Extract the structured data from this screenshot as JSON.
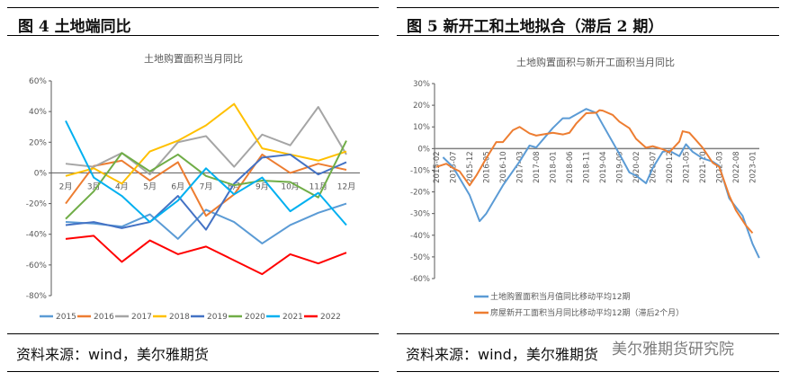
{
  "left_panel": {
    "header": "图 4  土地端同比",
    "source": "资料来源：wind，美尔雅期货"
  },
  "right_panel": {
    "header": "图 5  新开工和土地拟合（滞后 2 期）",
    "source": "资料来源：wind，美尔雅期货",
    "watermark": "美尔雅期货研究院"
  },
  "chart_data": [
    {
      "type": "line",
      "title": "土地购置面积当月同比",
      "categories": [
        "2月",
        "3月",
        "4月",
        "5月",
        "6月",
        "7月",
        "8月",
        "9月",
        "10月",
        "11月",
        "12月"
      ],
      "ylim": [
        -80,
        60
      ],
      "yticks": [
        "60%",
        "40%",
        "20%",
        "0%",
        "-20%",
        "-40%",
        "-60%",
        "-80%"
      ],
      "legend": "bottom",
      "grid": false,
      "series": [
        {
          "name": "2015",
          "color": "#5B9BD5",
          "values": [
            -32,
            -33,
            -35,
            -27,
            -43,
            -24,
            -32,
            -46,
            -34,
            -26,
            -20
          ]
        },
        {
          "name": "2016",
          "color": "#ED7D31",
          "values": [
            -20,
            4.5,
            8,
            -5,
            7,
            -28,
            -14,
            12,
            0,
            6,
            2
          ]
        },
        {
          "name": "2017",
          "color": "#A5A5A5",
          "values": [
            6,
            4,
            13,
            -1,
            20,
            24,
            4,
            25,
            18,
            43,
            12
          ]
        },
        {
          "name": "2018",
          "color": "#FFC000",
          "values": [
            -2,
            3,
            -7,
            14,
            21,
            31,
            45,
            16,
            12,
            8,
            14
          ]
        },
        {
          "name": "2019",
          "color": "#4472C4",
          "values": [
            -34,
            -32,
            -36,
            -32,
            -15,
            -37,
            -7,
            10,
            12,
            -1,
            7
          ]
        },
        {
          "name": "2020",
          "color": "#70AD47",
          "values": [
            -30,
            -12,
            13,
            1,
            12,
            -2,
            -8,
            -5,
            -6,
            -16,
            21
          ]
        },
        {
          "name": "2021",
          "color": "#00B0F0",
          "values": [
            34,
            -3,
            -15,
            -32,
            -18,
            3,
            -14,
            -3,
            -25,
            -13,
            -34
          ]
        },
        {
          "name": "2022",
          "color": "#FF0000",
          "values": [
            -43,
            -41,
            -58,
            -44,
            -53,
            -48,
            -57,
            -66,
            -53,
            -59,
            -52
          ]
        }
      ]
    },
    {
      "type": "line",
      "title": "土地购置面积与新开工面积当月同比",
      "xticks": [
        "2015-02",
        "2015-07",
        "2015-12",
        "2016-05",
        "2016-10",
        "2017-03",
        "2017-08",
        "2018-01",
        "2018-06",
        "2018-11",
        "2019-04",
        "2019-09",
        "2020-02",
        "2020-07",
        "2020-12",
        "2021-05",
        "2021-10",
        "2022-03",
        "2022-08",
        "2023-01"
      ],
      "ylim": [
        -60,
        30
      ],
      "yticks": [
        "30%",
        "20%",
        "10%",
        "0%",
        "-10%",
        "-20%",
        "-30%",
        "-40%",
        "-50%",
        "-60%"
      ],
      "legend": "bottom",
      "grid": false,
      "series": [
        {
          "name": "土地购置面积当月值同比移动平均12期",
          "color": "#5B9BD5",
          "points": [
            [
              "2015-04",
              -4
            ],
            [
              "2015-07",
              -8.5
            ],
            [
              "2015-12",
              -21.5
            ],
            [
              "2016-03",
              -33.5
            ],
            [
              "2016-05",
              -30
            ],
            [
              "2016-10",
              -17
            ],
            [
              "2017-03",
              -6
            ],
            [
              "2017-06",
              1.4
            ],
            [
              "2017-08",
              0.5
            ],
            [
              "2018-01",
              9.5
            ],
            [
              "2018-04",
              14
            ],
            [
              "2018-06",
              14
            ],
            [
              "2018-11",
              18.3
            ],
            [
              "2019-02",
              16.5
            ],
            [
              "2019-04",
              11
            ],
            [
              "2019-09",
              -2.5
            ],
            [
              "2019-12",
              -11
            ],
            [
              "2020-02",
              -12.5
            ],
            [
              "2020-05",
              -16
            ],
            [
              "2020-07",
              -9
            ],
            [
              "2020-10",
              -1.5
            ],
            [
              "2020-12",
              -1
            ],
            [
              "2021-03",
              -3.5
            ],
            [
              "2021-05",
              2
            ],
            [
              "2021-07",
              -1.5
            ],
            [
              "2021-10",
              -4.5
            ],
            [
              "2022-01",
              -6
            ],
            [
              "2022-03",
              -8
            ],
            [
              "2022-06",
              -23
            ],
            [
              "2022-08",
              -27
            ],
            [
              "2022-10",
              -31
            ],
            [
              "2023-01",
              -44
            ],
            [
              "2023-03",
              -50.5
            ]
          ]
        },
        {
          "name": "房屋新开工面积当月同比移动平均12期（滞后2个月）",
          "color": "#ED7D31",
          "points": [
            [
              "2015-02",
              -8.5
            ],
            [
              "2015-05",
              -7
            ],
            [
              "2015-07",
              -9
            ],
            [
              "2015-09",
              -10.5
            ],
            [
              "2015-12",
              -17
            ],
            [
              "2016-02",
              -12.5
            ],
            [
              "2016-05",
              -4.5
            ],
            [
              "2016-08",
              3
            ],
            [
              "2016-10",
              3
            ],
            [
              "2017-01",
              8.5
            ],
            [
              "2017-03",
              10
            ],
            [
              "2017-06",
              7
            ],
            [
              "2017-08",
              6
            ],
            [
              "2018-01",
              7.3
            ],
            [
              "2018-04",
              6.5
            ],
            [
              "2018-06",
              7.3
            ],
            [
              "2018-08",
              11.5
            ],
            [
              "2018-11",
              16.3
            ],
            [
              "2019-02",
              16.5
            ],
            [
              "2019-03",
              17.7
            ],
            [
              "2019-04",
              17.5
            ],
            [
              "2019-07",
              15.5
            ],
            [
              "2019-09",
              12.4
            ],
            [
              "2019-12",
              9.4
            ],
            [
              "2020-02",
              4.5
            ],
            [
              "2020-05",
              0.4
            ],
            [
              "2020-07",
              1.1
            ],
            [
              "2020-10",
              -0.3
            ],
            [
              "2020-12",
              -1.7
            ],
            [
              "2021-03",
              3.2
            ],
            [
              "2021-04",
              8
            ],
            [
              "2021-06",
              7.3
            ],
            [
              "2021-08",
              3.9
            ],
            [
              "2021-10",
              0.4
            ],
            [
              "2022-01",
              -6.5
            ],
            [
              "2022-03",
              -8.5
            ],
            [
              "2022-06",
              -21.7
            ],
            [
              "2022-08",
              -28.5
            ],
            [
              "2022-11",
              -35.5
            ],
            [
              "2023-01",
              -39
            ]
          ]
        }
      ]
    }
  ]
}
